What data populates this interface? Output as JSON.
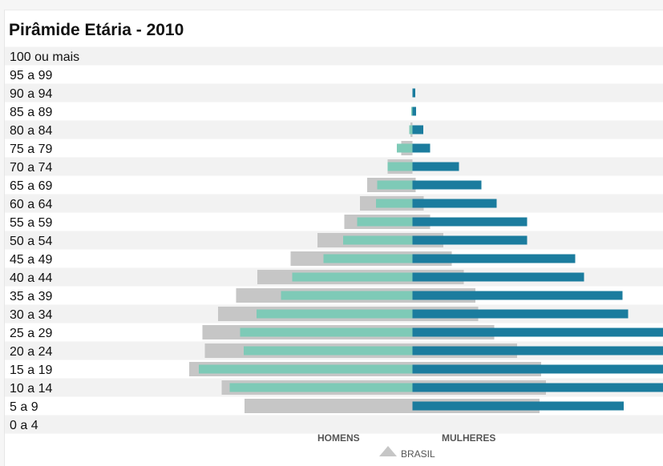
{
  "chart_data": {
    "type": "bar",
    "title": "Pirâmide Etária - 2010",
    "categories": [
      "100 ou mais",
      "95 a 99",
      "90 a 94",
      "85 a 89",
      "80 a 84",
      "75 a 79",
      "70 a 74",
      "65 a 69",
      "60 a 64",
      "55 a 59",
      "50 a 54",
      "45 a 49",
      "40 a 44",
      "35 a 39",
      "30 a 34",
      "25 a 29",
      "20 a 24",
      "15 a 19",
      "10 a 14",
      "5 a 9",
      "0 a 4"
    ],
    "series": [
      {
        "name": "HOMENS",
        "values": [
          0,
          0,
          0,
          0.3,
          0.8,
          3.9,
          6.2,
          8.8,
          9.1,
          13.8,
          17.3,
          22.2,
          30.0,
          32.8,
          38.9,
          43.0,
          42.1,
          53.3,
          45.6,
          0,
          0
        ]
      },
      {
        "name": "MULHERES",
        "values": [
          0,
          0,
          0.7,
          0.9,
          2.7,
          4.4,
          11.6,
          17.2,
          21.0,
          28.6,
          28.6,
          40.6,
          42.8,
          52.4,
          53.8,
          64.9,
          72.0,
          73.0,
          68.1,
          52.7,
          0
        ]
      },
      {
        "name": "BRASIL",
        "values": [
          0,
          0,
          0,
          0,
          0,
          0,
          0,
          0,
          0,
          0,
          0,
          0,
          0,
          0,
          0,
          0,
          0,
          0,
          0,
          0,
          0
        ]
      }
    ],
    "brasil": {
      "homens": [
        0,
        0,
        0,
        0,
        0.5,
        2.8,
        6.2,
        11.3,
        13.1,
        17.0,
        23.7,
        30.4,
        38.7,
        44.0,
        48.5,
        52.4,
        51.8,
        55.7,
        47.6,
        41.9,
        0
      ],
      "mulheres": [
        0,
        0,
        0,
        0,
        0,
        0,
        0,
        0.8,
        2.8,
        4.4,
        7.7,
        9.8,
        12.8,
        15.7,
        16.4,
        20.4,
        26.1,
        32.1,
        33.3,
        31.7,
        0
      ]
    },
    "legend": {
      "homens": "HOMENS",
      "mulheres": "MULHERES",
      "brasil": "BRASIL",
      "placement": "bottom"
    },
    "colors": {
      "homens": "#7ecab7",
      "mulheres": "#1b7c9e",
      "brasil": "#c6c6c6",
      "stripe": "#f2f2f2",
      "label": "#111111",
      "legend": "#555555"
    },
    "xlabel": "",
    "ylabel": "",
    "grid": false
  }
}
